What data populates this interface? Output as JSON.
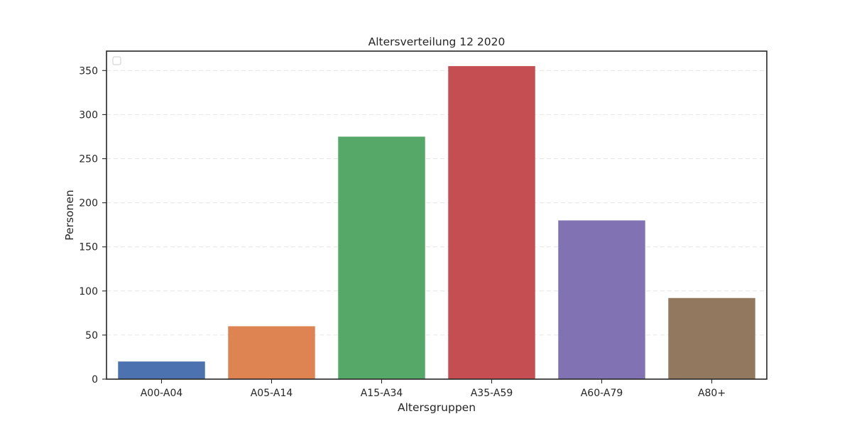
{
  "chart_data": {
    "type": "bar",
    "title": "Altersverteilung 12 2020",
    "xlabel": "Altersgruppen",
    "ylabel": "Personen",
    "categories": [
      "A00-A04",
      "A05-A14",
      "A15-A34",
      "A35-A59",
      "A60-A79",
      "A80+"
    ],
    "values": [
      20,
      60,
      275,
      355,
      180,
      92
    ],
    "colors": [
      "#4c72b0",
      "#dd8452",
      "#55a868",
      "#c44e52",
      "#8172b3",
      "#937860"
    ],
    "ylim": [
      0,
      372
    ],
    "yticks": [
      0,
      50,
      100,
      150,
      200,
      250,
      300,
      350
    ],
    "ytick_labels": [
      "0",
      "50",
      "100",
      "150",
      "200",
      "250",
      "300",
      "350"
    ],
    "grid": "horizontal-dashed",
    "legend": "top-left-empty"
  }
}
